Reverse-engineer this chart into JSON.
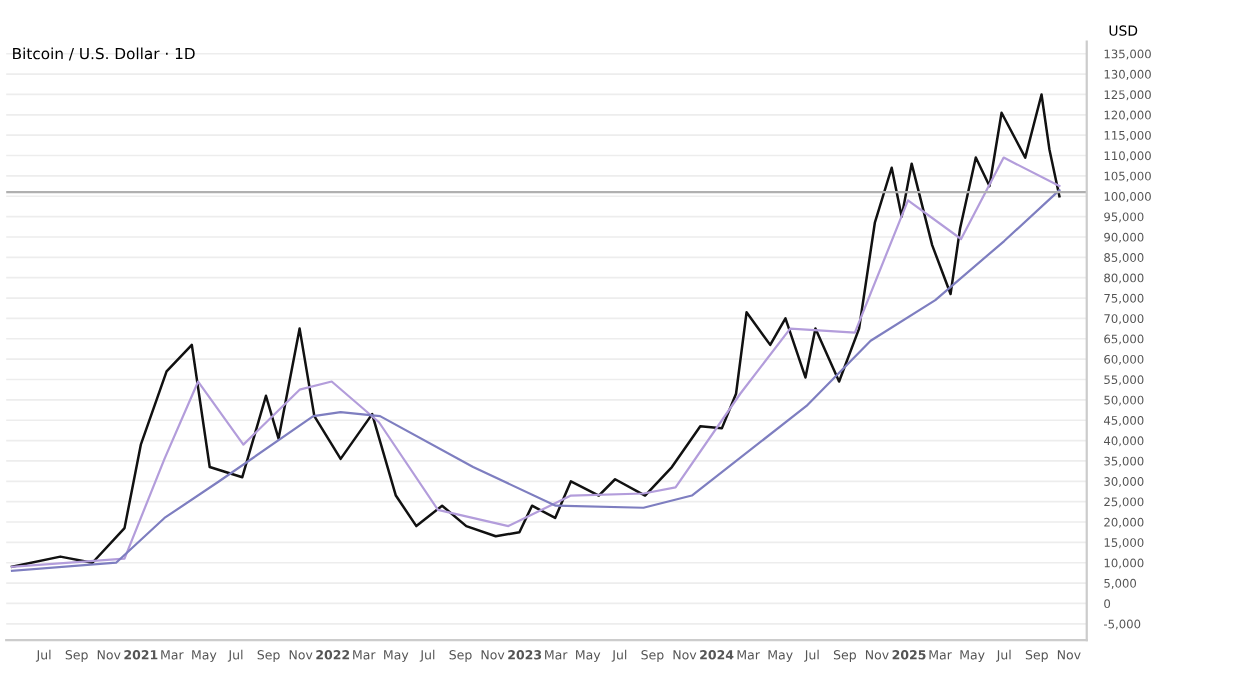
{
  "chart_data": {
    "type": "line",
    "title": "Bitcoin / U.S. Dollar · 1D",
    "xlim": [
      "2020-04-20",
      "2025-12-05"
    ],
    "xticks": [
      {
        "value": "2020-07-01",
        "label": "Jul"
      },
      {
        "value": "2020-09-01",
        "label": "Sep"
      },
      {
        "value": "2020-11-01",
        "label": "Nov"
      },
      {
        "value": "2021-01-01",
        "label": "2021"
      },
      {
        "value": "2021-03-01",
        "label": "Mar"
      },
      {
        "value": "2021-05-01",
        "label": "May"
      },
      {
        "value": "2021-07-01",
        "label": "Jul"
      },
      {
        "value": "2021-09-01",
        "label": "Sep"
      },
      {
        "value": "2021-11-01",
        "label": "Nov"
      },
      {
        "value": "2022-01-01",
        "label": "2022"
      },
      {
        "value": "2022-03-01",
        "label": "Mar"
      },
      {
        "value": "2022-05-01",
        "label": "May"
      },
      {
        "value": "2022-07-01",
        "label": "Jul"
      },
      {
        "value": "2022-09-01",
        "label": "Sep"
      },
      {
        "value": "2022-11-01",
        "label": "Nov"
      },
      {
        "value": "2023-01-01",
        "label": "2023"
      },
      {
        "value": "2023-03-01",
        "label": "Mar"
      },
      {
        "value": "2023-05-01",
        "label": "May"
      },
      {
        "value": "2023-07-01",
        "label": "Jul"
      },
      {
        "value": "2023-09-01",
        "label": "Sep"
      },
      {
        "value": "2023-11-01",
        "label": "Nov"
      },
      {
        "value": "2024-01-01",
        "label": "2024"
      },
      {
        "value": "2024-03-01",
        "label": "Mar"
      },
      {
        "value": "2024-05-01",
        "label": "May"
      },
      {
        "value": "2024-07-01",
        "label": "Jul"
      },
      {
        "value": "2024-09-01",
        "label": "Sep"
      },
      {
        "value": "2024-11-01",
        "label": "Nov"
      },
      {
        "value": "2025-01-01",
        "label": "2025"
      },
      {
        "value": "2025-03-01",
        "label": "Mar"
      },
      {
        "value": "2025-05-01",
        "label": "May"
      },
      {
        "value": "2025-07-01",
        "label": "Jul"
      },
      {
        "value": "2025-09-01",
        "label": "Sep"
      },
      {
        "value": "2025-11-01",
        "label": "Nov"
      }
    ],
    "ylim": [
      -9000,
      138000
    ],
    "yticks": [
      {
        "value": -5000,
        "label": "-5,000"
      },
      0,
      {
        "value": 5000,
        "label": "5,000"
      },
      {
        "value": 10000,
        "label": "10,000"
      },
      {
        "value": 15000,
        "label": "15,000"
      },
      {
        "value": 20000,
        "label": "20,000"
      },
      {
        "value": 25000,
        "label": "25,000"
      },
      {
        "value": 30000,
        "label": "30,000"
      },
      {
        "value": 35000,
        "label": "35,000"
      },
      {
        "value": 40000,
        "label": "40,000"
      },
      {
        "value": 45000,
        "label": "45,000"
      },
      {
        "value": 50000,
        "label": "50,000"
      },
      {
        "value": 55000,
        "label": "55,000"
      },
      {
        "value": 60000,
        "label": "60,000"
      },
      {
        "value": 65000,
        "label": "65,000"
      },
      {
        "value": 70000,
        "label": "70,000"
      },
      {
        "value": 75000,
        "label": "75,000"
      },
      {
        "value": 80000,
        "label": "80,000"
      },
      {
        "value": 85000,
        "label": "85,000"
      },
      {
        "value": 90000,
        "label": "90,000"
      },
      {
        "value": 95000,
        "label": "95,000"
      },
      {
        "value": 100000,
        "label": "100,000"
      },
      {
        "value": 105000,
        "label": "105,000"
      },
      {
        "value": 110000,
        "label": "110,000"
      },
      {
        "value": 115000,
        "label": "115,000"
      },
      {
        "value": 120000,
        "label": "120,000"
      },
      {
        "value": 125000,
        "label": "125,000"
      },
      {
        "value": 130000,
        "label": "130,000"
      },
      {
        "value": 135000,
        "label": "135,000"
      }
    ],
    "ylabel": "USD",
    "grid": "y",
    "ref_lines": [
      {
        "axis": "y",
        "value": 101000,
        "color": "#b0b0b0"
      }
    ],
    "series": [
      {
        "color": "#111111",
        "x": [
          "2020-05-01",
          "2020-08-01",
          "2020-10-01",
          "2020-12-01",
          "2021-01-01",
          "2021-02-19",
          "2021-04-08",
          "2021-05-12",
          "2021-07-13",
          "2021-08-27",
          "2021-09-20",
          "2021-10-30",
          "2021-11-27",
          "2022-01-16",
          "2022-03-17",
          "2022-05-01",
          "2022-06-09",
          "2022-07-28",
          "2022-09-12",
          "2022-11-07",
          "2022-12-22",
          "2023-01-15",
          "2023-02-28",
          "2023-03-30",
          "2023-05-22",
          "2023-06-22",
          "2023-08-18",
          "2023-10-08",
          "2023-12-01",
          "2024-01-11",
          "2024-02-07",
          "2024-02-27",
          "2024-04-12",
          "2024-05-11",
          "2024-06-18",
          "2024-07-07",
          "2024-08-21",
          "2024-09-28",
          "2024-10-28",
          "2024-11-29",
          "2024-12-18",
          "2025-01-06",
          "2025-02-14",
          "2025-03-21",
          "2025-04-08",
          "2025-05-08",
          "2025-06-03",
          "2025-06-26",
          "2025-08-10",
          "2025-09-10",
          "2025-09-25",
          "2025-10-14"
        ],
        "values": [
          9000,
          11500,
          10000,
          18500,
          39000,
          57000,
          63500,
          33500,
          31000,
          51000,
          40500,
          67500,
          46000,
          35500,
          46500,
          26500,
          19000,
          24000,
          19000,
          16500,
          17500,
          24000,
          21000,
          30000,
          26500,
          30500,
          26500,
          33500,
          43500,
          43000,
          51500,
          71500,
          63500,
          70000,
          55500,
          67500,
          54500,
          67500,
          93500,
          107000,
          95000,
          108000,
          88000,
          76000,
          92000,
          109500,
          102500,
          120500,
          109500,
          125000,
          111500,
          100000
        ]
      },
      {
        "color": "#b39ddb",
        "x": [
          "2020-05-01",
          "2020-12-01",
          "2021-02-15",
          "2021-04-20",
          "2021-07-15",
          "2021-10-30",
          "2021-12-30",
          "2022-03-30",
          "2022-07-20",
          "2022-12-01",
          "2023-03-30",
          "2023-08-15",
          "2023-10-15",
          "2024-02-15",
          "2024-05-20",
          "2024-09-20",
          "2024-12-30",
          "2025-04-10",
          "2025-06-30",
          "2025-10-14"
        ],
        "values": [
          9000,
          11000,
          35500,
          54500,
          39000,
          52500,
          54500,
          44500,
          23000,
          19000,
          26500,
          27000,
          28500,
          51500,
          67500,
          66500,
          99000,
          89500,
          109500,
          102500
        ]
      },
      {
        "color": "#7e7ec0",
        "x": [
          "2020-05-01",
          "2020-11-15",
          "2021-02-15",
          "2021-05-30",
          "2021-11-25",
          "2022-01-16",
          "2022-04-01",
          "2022-09-25",
          "2023-03-01",
          "2023-08-15",
          "2023-11-15",
          "2024-06-20",
          "2024-10-20",
          "2025-02-20",
          "2025-07-01",
          "2025-10-14"
        ],
        "values": [
          8000,
          10000,
          21000,
          30000,
          46000,
          47000,
          46000,
          33500,
          24000,
          23500,
          26500,
          48500,
          64500,
          74500,
          89000,
          101500
        ]
      }
    ]
  }
}
